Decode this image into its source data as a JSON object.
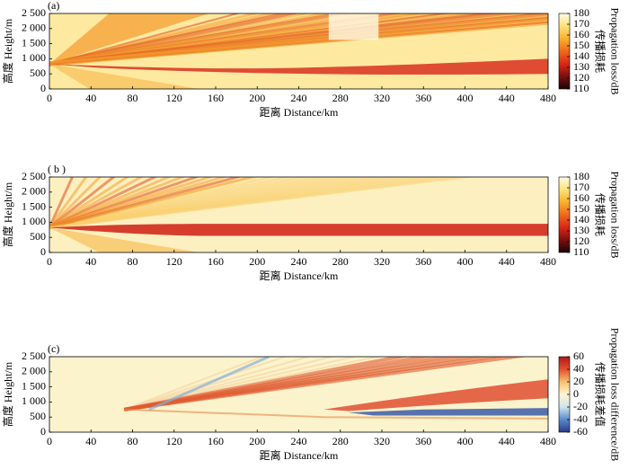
{
  "chart_data": [
    {
      "type": "heatmap",
      "panel_label": "(a)",
      "xlabel": "距离 Distance/km",
      "ylabel": "高度 Height/m",
      "xlim": [
        0,
        480
      ],
      "xticks": [
        0,
        40,
        80,
        120,
        160,
        200,
        240,
        280,
        320,
        360,
        400,
        440,
        480
      ],
      "ylim": [
        0,
        2500
      ],
      "yticks": [
        0,
        500,
        {
          "value": 1000,
          "label": "1 000"
        },
        {
          "value": 1500,
          "label": "1 500"
        },
        {
          "value": 2000,
          "label": "2 000"
        },
        {
          "value": 2500,
          "label": "2 500"
        }
      ],
      "colorbar_title": "传播损耗",
      "colorbar_label": "Propagation loss/dB",
      "clim": [
        110,
        180
      ],
      "cticks": [
        110,
        120,
        130,
        140,
        150,
        160,
        170,
        180
      ],
      "colormap": [
        "#1a0505",
        "#7a1010",
        "#d82818",
        "#ee6a1c",
        "#f8b030",
        "#fce27a",
        "#fffbe6"
      ]
    },
    {
      "type": "heatmap",
      "panel_label": "( b )",
      "xlabel": "距离 Distance/km",
      "ylabel": "高度 Height/m",
      "xlim": [
        0,
        480
      ],
      "xticks": [
        0,
        40,
        80,
        120,
        160,
        200,
        240,
        280,
        320,
        360,
        400,
        440,
        480
      ],
      "ylim": [
        0,
        2500
      ],
      "yticks": [
        0,
        500,
        {
          "value": 1000,
          "label": "1 000"
        },
        {
          "value": 1500,
          "label": "1 500"
        },
        {
          "value": 2000,
          "label": "2 000"
        },
        {
          "value": 2500,
          "label": "2 500"
        }
      ],
      "colorbar_title": "传播损耗",
      "colorbar_label": "Propagation loss/dB",
      "clim": [
        110,
        180
      ],
      "cticks": [
        110,
        120,
        130,
        140,
        150,
        160,
        170,
        180
      ],
      "colormap": [
        "#1a0505",
        "#7a1010",
        "#d82818",
        "#ee6a1c",
        "#f8b030",
        "#fce27a",
        "#fffbe6"
      ]
    },
    {
      "type": "heatmap",
      "panel_label": "(c)",
      "xlabel": "距离 Distance/km",
      "ylabel": "高度 Height/m",
      "xlim": [
        0,
        480
      ],
      "xticks": [
        0,
        40,
        80,
        120,
        160,
        200,
        240,
        280,
        320,
        360,
        400,
        440,
        480
      ],
      "ylim": [
        0,
        2500
      ],
      "yticks": [
        0,
        500,
        {
          "value": 1000,
          "label": "1 000"
        },
        {
          "value": 1500,
          "label": "1 500"
        },
        {
          "value": 2000,
          "label": "2 000"
        },
        {
          "value": 2500,
          "label": "2 500"
        }
      ],
      "colorbar_title": "传播损耗差值",
      "colorbar_label": "Propagation loss difference/dB",
      "clim": [
        -60,
        60
      ],
      "cticks": [
        -60,
        -40,
        -20,
        0,
        20,
        40,
        60
      ],
      "colormap": [
        "#2a3a8a",
        "#5a8ac8",
        "#cfe4ee",
        "#fdf6d0",
        "#f8c070",
        "#e05030",
        "#b01818"
      ]
    }
  ]
}
